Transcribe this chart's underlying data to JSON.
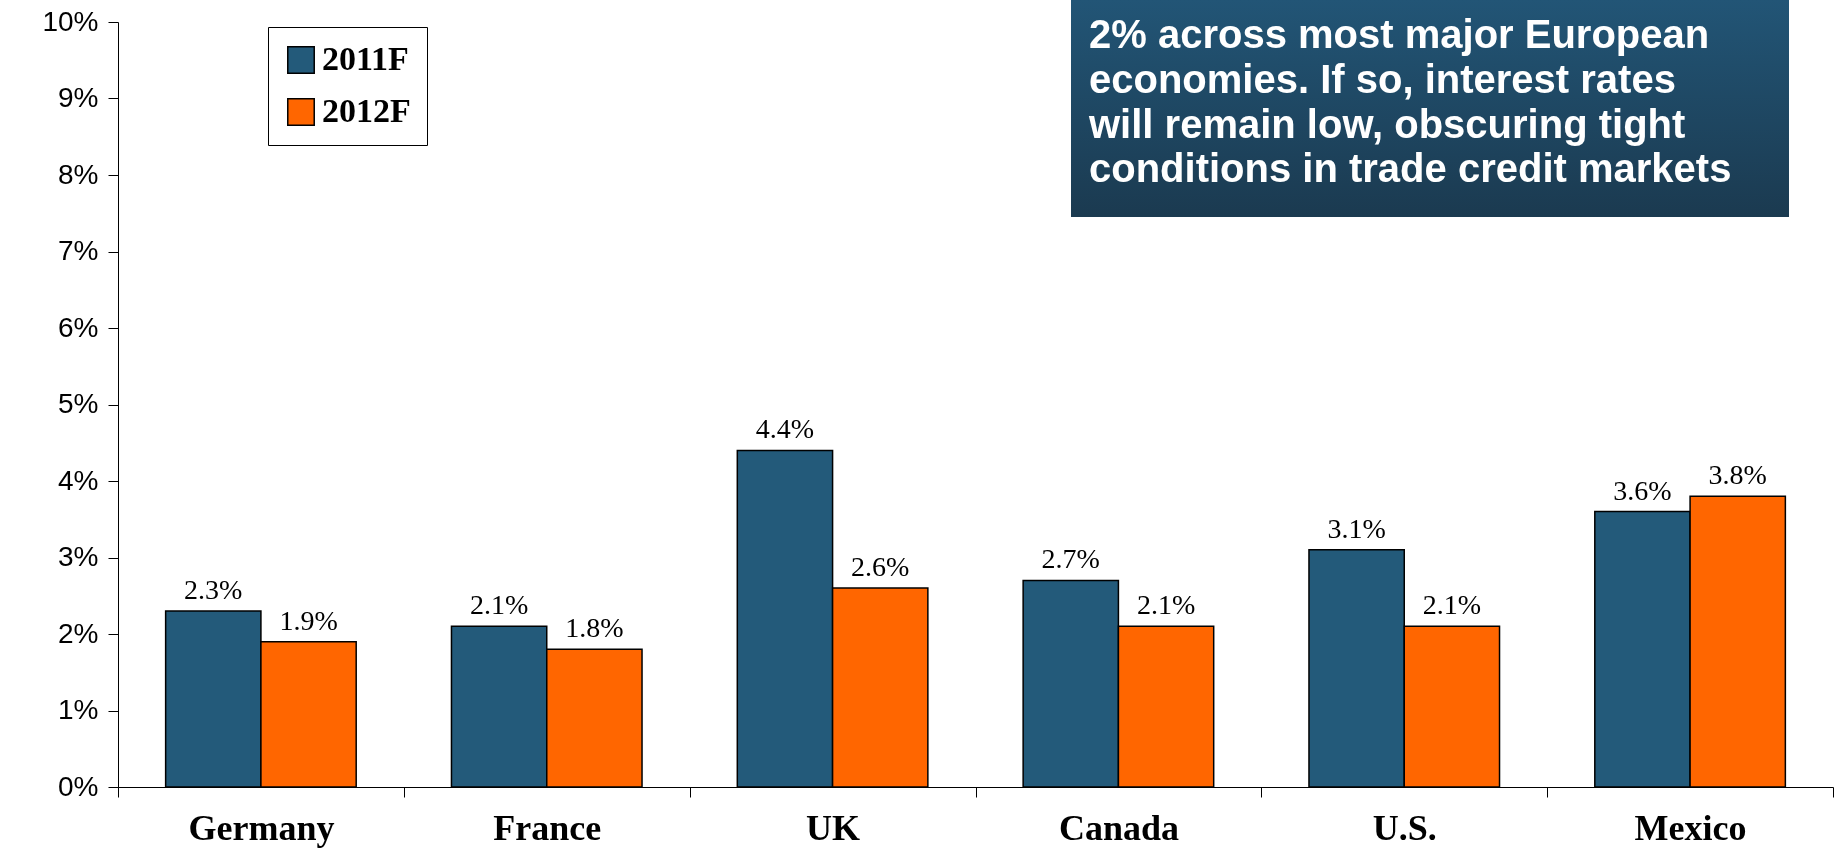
{
  "chart_data": {
    "type": "bar",
    "categories": [
      "Germany",
      "France",
      "UK",
      "Canada",
      "U.S.",
      "Mexico"
    ],
    "series": [
      {
        "name": "2011F",
        "color": "#235a7a",
        "values": [
          2.3,
          2.1,
          4.4,
          2.7,
          3.1,
          3.6
        ],
        "value_labels": [
          "2.3%",
          "2.1%",
          "4.4%",
          "2.7%",
          "3.1%",
          "3.6%"
        ]
      },
      {
        "name": "2012F",
        "color": "#ff6600",
        "values": [
          1.9,
          1.8,
          2.6,
          2.1,
          2.1,
          3.8
        ],
        "value_labels": [
          "1.9%",
          "1.8%",
          "2.6%",
          "2.1%",
          "2.1%",
          "3.8%"
        ]
      }
    ],
    "ylim": [
      0,
      10
    ],
    "yticks": [
      {
        "value": 0,
        "label": "0%"
      },
      {
        "value": 1,
        "label": "1%"
      },
      {
        "value": 2,
        "label": "2%"
      },
      {
        "value": 3,
        "label": "3%"
      },
      {
        "value": 4,
        "label": "4%"
      },
      {
        "value": 5,
        "label": "5%"
      },
      {
        "value": 6,
        "label": "6%"
      },
      {
        "value": 7,
        "label": "7%"
      },
      {
        "value": 8,
        "label": "8%"
      },
      {
        "value": 9,
        "label": "9%"
      },
      {
        "value": 10,
        "label": "10%"
      }
    ],
    "grid": false,
    "legend": "top left",
    "annotations": [
      "2% across most major European economies. If so, interest rates will remain low, obscuring tight conditions in trade credit markets"
    ]
  }
}
